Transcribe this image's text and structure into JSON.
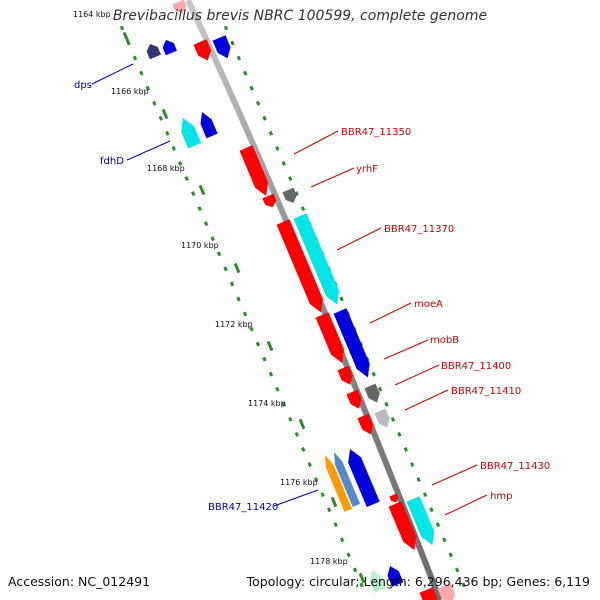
{
  "title": "Brevibacillus brevis NBRC 100599, complete genome",
  "footer": {
    "accession": "Accession: NC_012491",
    "summary": "Topology: circular; Length: 6,296,436 bp; Genes: 6,119"
  },
  "colors": {
    "backbone": "#8c8c8c",
    "tick": "#2e8b2e",
    "forward_label": "#cc0000",
    "reverse_label": "#0000aa",
    "gene_red": "#ff0000",
    "gene_blue": "#0000dd",
    "gene_cyan": "#00e5e5",
    "gene_gray": "#666666",
    "gene_lightgray": "#bbbbbb",
    "gene_navy": "#333377",
    "gene_orange": "#ff9900",
    "gene_steel": "#5588cc",
    "gene_palegreen": "#bbeecc",
    "gene_pink": "#ffaaaa"
  },
  "tick_labels": [
    "1164 kbp",
    "1166 kbp",
    "1168 kbp",
    "1170 kbp",
    "1172 kbp",
    "1174 kbp",
    "1176 kbp",
    "1178 kbp"
  ],
  "forward_genes": [
    "BBR47_11350",
    "yrhF",
    "BBR47_11370",
    "moeA",
    "mobB",
    "BBR47_11400",
    "BBR47_11410",
    "BBR47_11430",
    "hmp"
  ],
  "reverse_genes": [
    "dps",
    "fdhD",
    "BBR47_11420"
  ]
}
